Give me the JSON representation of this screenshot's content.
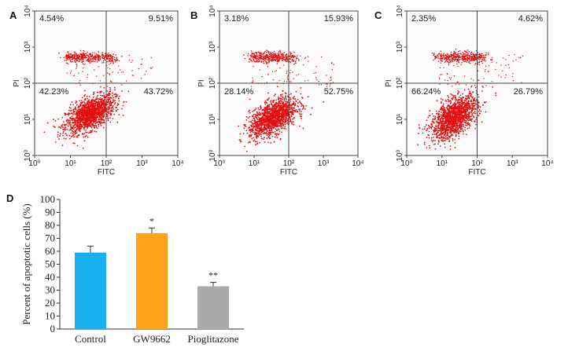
{
  "panel_letters": {
    "a": "A",
    "b": "B",
    "c": "C",
    "d": "D"
  },
  "colors": {
    "dots": "#e41010",
    "frame": "#444444",
    "blue": "#1ab0ef",
    "orange": "#ffa21c",
    "gray": "#a9a9a9"
  },
  "chart_data": [
    {
      "type": "scatter",
      "panel": "A",
      "xlabel": "FITC",
      "ylabel": "PI",
      "scale": "log",
      "xlim": [
        1,
        10000
      ],
      "ylim": [
        1,
        10000
      ],
      "x_ticks": [
        "10⁰",
        "10¹",
        "10²",
        "10³",
        "10⁴"
      ],
      "y_ticks": [
        "10⁰",
        "10¹",
        "10²",
        "10³",
        "10⁴"
      ],
      "quadrant_gate": [
        100,
        100
      ],
      "quadrants": {
        "upper_left": "4.54%",
        "upper_right": "9.51%",
        "lower_left": "42.23%",
        "lower_right": "43.72%"
      }
    },
    {
      "type": "scatter",
      "panel": "B",
      "xlabel": "FITC",
      "ylabel": "PI",
      "scale": "log",
      "xlim": [
        1,
        10000
      ],
      "ylim": [
        1,
        10000
      ],
      "x_ticks": [
        "10⁰",
        "10¹",
        "10²",
        "10³",
        "10⁴"
      ],
      "y_ticks": [
        "10⁰",
        "10¹",
        "10²",
        "10³",
        "10⁴"
      ],
      "quadrant_gate": [
        100,
        100
      ],
      "quadrants": {
        "upper_left": "3.18%",
        "upper_right": "15.93%",
        "lower_left": "28.14%",
        "lower_right": "52.75%"
      }
    },
    {
      "type": "scatter",
      "panel": "C",
      "xlabel": "FITC",
      "ylabel": "PI",
      "scale": "log",
      "xlim": [
        1,
        10000
      ],
      "ylim": [
        1,
        10000
      ],
      "x_ticks": [
        "10⁰",
        "10¹",
        "10²",
        "10³",
        "10⁴"
      ],
      "y_ticks": [
        "10⁰",
        "10¹",
        "10²",
        "10³",
        "10⁴"
      ],
      "quadrant_gate": [
        100,
        100
      ],
      "quadrants": {
        "upper_left": "2.35%",
        "upper_right": "4.62%",
        "lower_left": "66.24%",
        "lower_right": "26.79%"
      }
    },
    {
      "type": "bar",
      "panel": "D",
      "ylabel": "Percent of apoptotic cells (%)",
      "ylim": [
        0,
        100
      ],
      "y_ticks": [
        "0",
        "10",
        "20",
        "30",
        "40",
        "50",
        "60",
        "70",
        "80",
        "90",
        "100"
      ],
      "categories": [
        "Control",
        "GW9662",
        "Pioglitazone"
      ],
      "values": [
        59,
        74,
        33
      ],
      "errors": [
        5,
        4,
        3
      ],
      "significance": [
        "",
        "*",
        "**"
      ]
    }
  ]
}
